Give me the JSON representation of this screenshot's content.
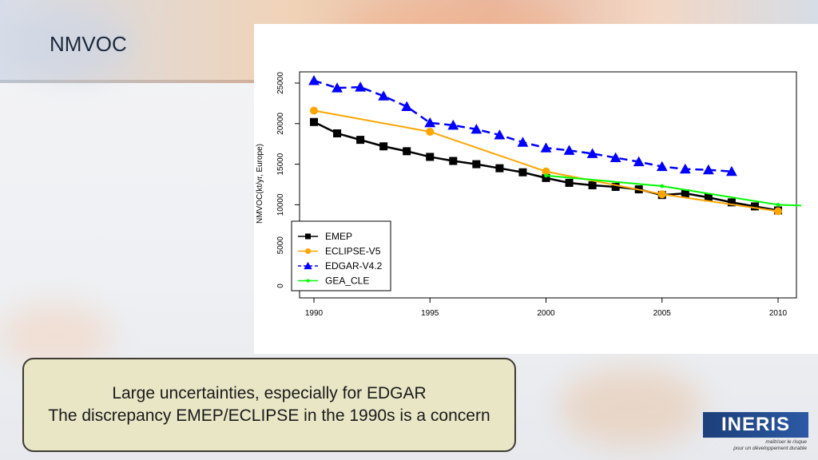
{
  "slide": {
    "title": "NMVOC",
    "note_lines": [
      "Large uncertainties, especially for EDGAR",
      "The discrepancy EMEP/ECLIPSE in the 1990s is a concern"
    ]
  },
  "logo": {
    "text": "INERIS",
    "tagline_1": "maîtriser le risque",
    "tagline_2": "pour un développement durable"
  },
  "chart_data": {
    "type": "line",
    "title": "",
    "ylabel": "NMVOC(kt/yr, Europe)",
    "xlabel": "",
    "xlim": [
      1990,
      2010
    ],
    "ylim": [
      0,
      25000
    ],
    "xticks": [
      1990,
      1995,
      2000,
      2005,
      2010
    ],
    "yticks": [
      0,
      5000,
      10000,
      15000,
      20000,
      25000
    ],
    "grid": false,
    "legend_placement": "bottom-left",
    "series": [
      {
        "name": "EMEP",
        "color": "#000000",
        "marker": "square",
        "dash": "solid",
        "x": [
          1990,
          1991,
          1992,
          1993,
          1994,
          1995,
          1996,
          1997,
          1998,
          1999,
          2000,
          2001,
          2002,
          2003,
          2004,
          2005,
          2006,
          2007,
          2008,
          2009,
          2010
        ],
        "y": [
          20200,
          18800,
          18000,
          17200,
          16600,
          15900,
          15400,
          15000,
          14500,
          14000,
          13300,
          12700,
          12400,
          12200,
          11900,
          11200,
          11400,
          10900,
          10300,
          9800,
          9300
        ]
      },
      {
        "name": "ECLIPSE-V5",
        "color": "#ffa500",
        "marker": "circle",
        "dash": "solid",
        "x": [
          1990,
          1995,
          2000,
          2005,
          2010
        ],
        "y": [
          21600,
          19000,
          14100,
          11300,
          9200
        ]
      },
      {
        "name": "EDGAR-V4.2",
        "color": "#0000ff",
        "marker": "triangle",
        "dash": "dashed",
        "x": [
          1990,
          1991,
          1992,
          1993,
          1994,
          1995,
          1996,
          1997,
          1998,
          1999,
          2000,
          2001,
          2002,
          2003,
          2004,
          2005,
          2006,
          2007,
          2008
        ],
        "y": [
          25300,
          24400,
          24500,
          23400,
          22100,
          20100,
          19800,
          19300,
          18600,
          17700,
          17000,
          16700,
          16300,
          15800,
          15300,
          14700,
          14400,
          14300,
          14100
        ]
      },
      {
        "name": "GEA_CLE",
        "color": "#00ff00",
        "marker": "dot",
        "dash": "solid",
        "x": [
          2000,
          2005,
          2010,
          2011
        ],
        "y": [
          13600,
          12300,
          10000,
          9900
        ]
      }
    ]
  }
}
